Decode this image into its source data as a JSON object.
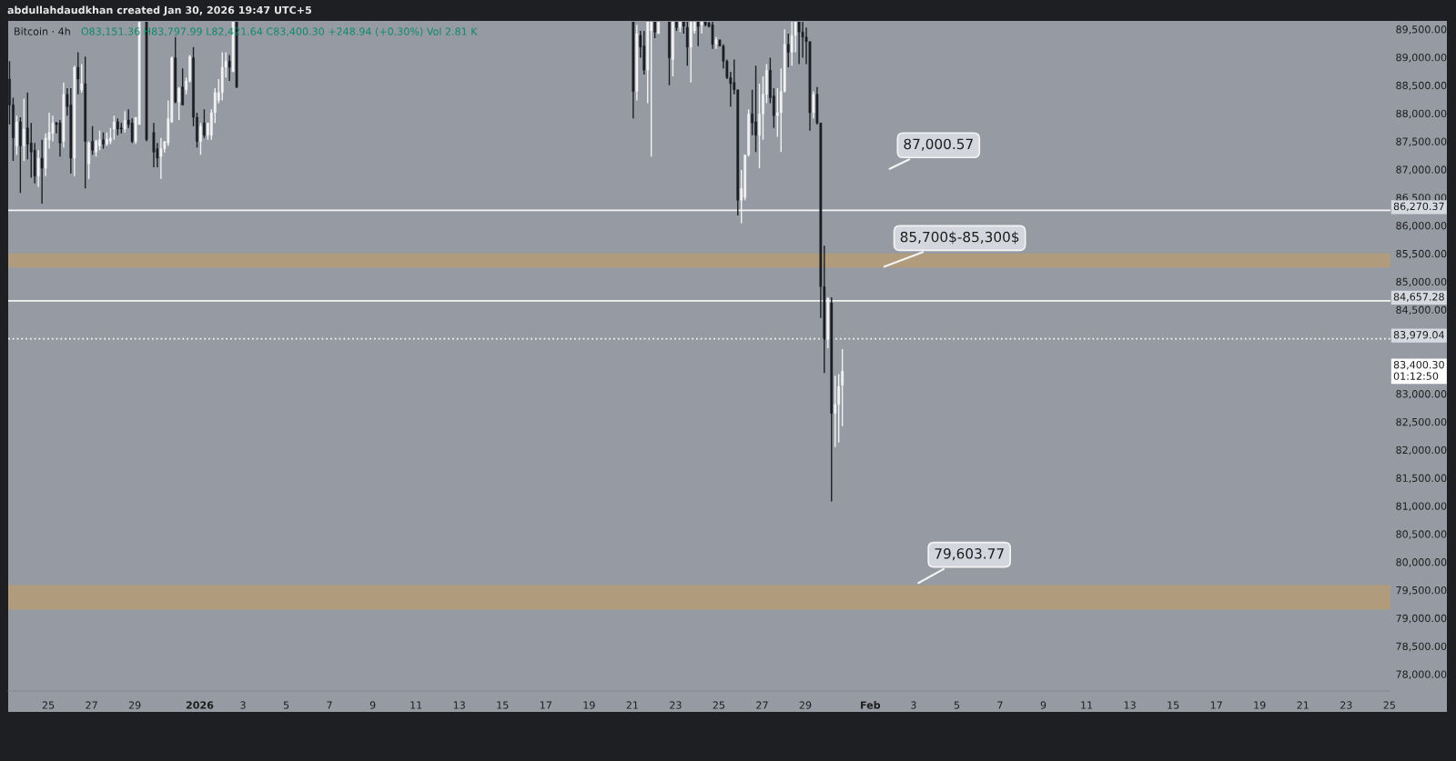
{
  "chart_data": {
    "type": "candlestick",
    "title": "Bitcoin · 4h",
    "subtitle": "O83,151.36 H83,797.99 L82,421.64 C83,400.30 +248.94 (+0.30%) Vol 2.81 K",
    "x": [
      "2025-12-23T05:00",
      "2025-12-23T09:00",
      "2025-12-23T13:00",
      "2025-12-23T17:00",
      "2025-12-23T21:00",
      "2025-12-24T01:00",
      "2025-12-24T05:00",
      "2025-12-24T09:00",
      "2025-12-24T13:00",
      "2025-12-24T17:00",
      "2025-12-24T21:00",
      "2025-12-25T01:00",
      "2025-12-25T05:00",
      "2025-12-25T09:00",
      "2025-12-25T13:00",
      "2025-12-25T17:00",
      "2025-12-25T21:00",
      "2025-12-26T01:00",
      "2025-12-26T05:00",
      "2025-12-26T09:00",
      "2025-12-26T13:00",
      "2025-12-26T17:00",
      "2025-12-26T21:00",
      "2025-12-27T01:00",
      "2025-12-27T05:00",
      "2025-12-27T09:00",
      "2025-12-27T13:00",
      "2025-12-27T17:00",
      "2025-12-27T21:00",
      "2025-12-28T01:00",
      "2025-12-28T05:00",
      "2025-12-28T09:00",
      "2025-12-28T13:00",
      "2025-12-28T17:00",
      "2025-12-28T21:00",
      "2025-12-29T01:00",
      "2025-12-29T05:00",
      "2025-12-29T13:00",
      "2025-12-29T21:00",
      "2025-12-30T01:00",
      "2025-12-30T05:00",
      "2025-12-30T09:00",
      "2025-12-30T13:00",
      "2025-12-30T17:00",
      "2025-12-30T21:00",
      "2025-12-31T01:00",
      "2025-12-31T05:00",
      "2025-12-31T09:00",
      "2025-12-31T13:00",
      "2025-12-31T17:00",
      "2025-12-31T21:00",
      "2026-01-01T01:00",
      "2026-01-01T05:00",
      "2026-01-01T09:00",
      "2026-01-01T13:00",
      "2026-01-01T17:00",
      "2026-01-01T21:00",
      "2026-01-02T01:00",
      "2026-01-02T05:00",
      "2026-01-02T09:00",
      "2026-01-02T13:00",
      "2026-01-02T17:00",
      "2026-01-21T01:00",
      "2026-01-21T05:00",
      "2026-01-21T09:00",
      "2026-01-21T13:00",
      "2026-01-21T17:00",
      "2026-01-21T21:00",
      "2026-01-22T01:00",
      "2026-01-22T05:00",
      "2026-01-22T17:00",
      "2026-01-22T21:00",
      "2026-01-23T01:00",
      "2026-01-23T05:00",
      "2026-01-23T09:00",
      "2026-01-23T13:00",
      "2026-01-23T17:00",
      "2026-01-23T21:00",
      "2026-01-24T01:00",
      "2026-01-24T05:00",
      "2026-01-24T09:00",
      "2026-01-24T13:00",
      "2026-01-24T17:00",
      "2026-01-24T21:00",
      "2026-01-25T01:00",
      "2026-01-25T05:00",
      "2026-01-25T09:00",
      "2026-01-25T13:00",
      "2026-01-25T17:00",
      "2026-01-25T21:00",
      "2026-01-26T01:00",
      "2026-01-26T05:00",
      "2026-01-26T09:00",
      "2026-01-26T13:00",
      "2026-01-26T17:00",
      "2026-01-26T21:00",
      "2026-01-27T01:00",
      "2026-01-27T05:00",
      "2026-01-27T09:00",
      "2026-01-27T13:00",
      "2026-01-27T17:00",
      "2026-01-27T21:00",
      "2026-01-28T01:00",
      "2026-01-28T05:00",
      "2026-01-28T09:00",
      "2026-01-28T13:00",
      "2026-01-28T17:00",
      "2026-01-28T21:00",
      "2026-01-29T01:00",
      "2026-01-29T05:00",
      "2026-01-29T09:00",
      "2026-01-29T13:00",
      "2026-01-29T17:00",
      "2026-01-29T21:00",
      "2026-01-30T01:00",
      "2026-01-30T05:00",
      "2026-01-30T09:00",
      "2026-01-30T13:00",
      "2026-01-30T17:00"
    ],
    "ohlc": [
      [
        88610,
        88930,
        87800,
        88150
      ],
      [
        88150,
        88280,
        87150,
        87560
      ],
      [
        87420,
        87960,
        87260,
        87850
      ],
      [
        87850,
        87930,
        86580,
        87420
      ],
      [
        87420,
        88260,
        87150,
        87720
      ],
      [
        87740,
        88370,
        87180,
        87450
      ],
      [
        87470,
        87830,
        86850,
        87310
      ],
      [
        87340,
        87470,
        86750,
        86880
      ],
      [
        86880,
        87340,
        86690,
        87200
      ],
      [
        87200,
        87530,
        86390,
        87020
      ],
      [
        87020,
        87640,
        86880,
        87560
      ],
      [
        87530,
        88010,
        87370,
        87660
      ],
      [
        87640,
        87960,
        87500,
        87830
      ],
      [
        87830,
        87850,
        87640,
        87800
      ],
      [
        87830,
        87880,
        87230,
        87470
      ],
      [
        87500,
        88550,
        87390,
        88340
      ],
      [
        88340,
        88450,
        87960,
        88120
      ],
      [
        88150,
        88450,
        86930,
        87200
      ],
      [
        87200,
        88850,
        86880,
        88820
      ],
      [
        88820,
        89090,
        88340,
        88610
      ],
      [
        88420,
        88880,
        88370,
        88530
      ],
      [
        88530,
        89010,
        86660,
        87500
      ],
      [
        87100,
        87500,
        86830,
        87470
      ],
      [
        87500,
        87770,
        87260,
        87340
      ],
      [
        87310,
        87530,
        87230,
        87500
      ],
      [
        87420,
        87690,
        87340,
        87530
      ],
      [
        87530,
        87660,
        87370,
        87450
      ],
      [
        87450,
        87660,
        87420,
        87540
      ],
      [
        87500,
        87740,
        87450,
        87560
      ],
      [
        87720,
        87960,
        87530,
        87850
      ],
      [
        87850,
        87910,
        87610,
        87720
      ],
      [
        87740,
        87830,
        87640,
        87720
      ],
      [
        87720,
        88040,
        87660,
        87880
      ],
      [
        87880,
        88070,
        87740,
        87800
      ],
      [
        87830,
        87910,
        87470,
        87500
      ],
      [
        87500,
        87930,
        87450,
        87930
      ],
      [
        87800,
        89630,
        87800,
        89630
      ],
      [
        89630,
        89630,
        87500,
        87530
      ],
      [
        87660,
        87830,
        87040,
        87310
      ],
      [
        87370,
        87470,
        87040,
        87200
      ],
      [
        87230,
        87560,
        86830,
        87370
      ],
      [
        87370,
        87500,
        87300,
        87500
      ],
      [
        87470,
        88230,
        87420,
        87910
      ],
      [
        87850,
        89010,
        87830,
        88990
      ],
      [
        88990,
        89360,
        88180,
        88200
      ],
      [
        88200,
        88470,
        87880,
        88450
      ],
      [
        88470,
        88800,
        88150,
        88150
      ],
      [
        88420,
        88640,
        88340,
        88580
      ],
      [
        88580,
        89040,
        88550,
        89010
      ],
      [
        88990,
        89180,
        87770,
        87930
      ],
      [
        87930,
        88010,
        87390,
        87500
      ],
      [
        87500,
        87830,
        87260,
        87770
      ],
      [
        87830,
        88070,
        87560,
        87610
      ],
      [
        87610,
        87830,
        87530,
        87830
      ],
      [
        87610,
        88070,
        87530,
        88010
      ],
      [
        88010,
        88450,
        87830,
        88370
      ],
      [
        88230,
        88610,
        88180,
        88370
      ],
      [
        88370,
        89090,
        88230,
        88820
      ],
      [
        88820,
        89090,
        88640,
        88930
      ],
      [
        88930,
        89040,
        88580,
        88820
      ],
      [
        88740,
        89630,
        88740,
        89630
      ],
      [
        89630,
        89630,
        88450,
        88470
      ],
      [
        89630,
        89630,
        87910,
        88390
      ],
      [
        88390,
        89580,
        88230,
        89420
      ],
      [
        89390,
        89470,
        88990,
        89180
      ],
      [
        89200,
        89470,
        88690,
        88770
      ],
      [
        88770,
        89630,
        88180,
        89630
      ],
      [
        89470,
        89630,
        87230,
        89630
      ],
      [
        89630,
        89630,
        89340,
        89450
      ],
      [
        89420,
        89630,
        89420,
        89630
      ],
      [
        89630,
        89630,
        88500,
        88990
      ],
      [
        88960,
        89630,
        88660,
        89630
      ],
      [
        89630,
        89630,
        89470,
        89530
      ],
      [
        89530,
        89630,
        89450,
        89630
      ],
      [
        89630,
        89630,
        89420,
        89550
      ],
      [
        89530,
        89630,
        88850,
        89180
      ],
      [
        89180,
        89630,
        88550,
        89630
      ],
      [
        89470,
        89630,
        89420,
        89630
      ],
      [
        89630,
        89630,
        89200,
        89550
      ],
      [
        89580,
        89630,
        89420,
        89630
      ],
      [
        89630,
        89630,
        89550,
        89580
      ],
      [
        89610,
        89630,
        89530,
        89550
      ],
      [
        89580,
        89630,
        89150,
        89230
      ],
      [
        89230,
        89360,
        89150,
        89310
      ],
      [
        89310,
        89310,
        89200,
        89200
      ],
      [
        89200,
        89230,
        88800,
        88930
      ],
      [
        88930,
        88960,
        88610,
        88640
      ],
      [
        88640,
        88740,
        88120,
        88530
      ],
      [
        88550,
        88960,
        88340,
        88420
      ],
      [
        88420,
        88420,
        86180,
        86450
      ],
      [
        86450,
        86990,
        86040,
        86660
      ],
      [
        86500,
        87260,
        86450,
        87260
      ],
      [
        87260,
        88070,
        87230,
        87990
      ],
      [
        87990,
        88420,
        87610,
        87830
      ],
      [
        87850,
        88850,
        87310,
        87610
      ],
      [
        87610,
        88530,
        87020,
        87990
      ],
      [
        87990,
        88660,
        87530,
        88340
      ],
      [
        88340,
        88880,
        88180,
        88770
      ],
      [
        88770,
        88990,
        88180,
        88280
      ],
      [
        88310,
        88450,
        87740,
        87960
      ],
      [
        87960,
        88450,
        87580,
        88010
      ],
      [
        88010,
        88800,
        87310,
        88390
      ],
      [
        88390,
        89500,
        88370,
        89230
      ],
      [
        89230,
        89420,
        88820,
        89090
      ],
      [
        89090,
        89630,
        88850,
        89390
      ],
      [
        89390,
        89630,
        89090,
        89630
      ],
      [
        89630,
        89630,
        88880,
        89450
      ],
      [
        89450,
        89630,
        88990,
        89360
      ],
      [
        89360,
        89530,
        88880,
        89280
      ],
      [
        89280,
        89280,
        87690,
        88010
      ],
      [
        88010,
        88390,
        87910,
        88340
      ],
      [
        88340,
        88470,
        87800,
        87830
      ],
      [
        87830,
        87830,
        84350,
        84910
      ],
      [
        84910,
        85640,
        83370,
        83970
      ],
      [
        83970,
        84720,
        83810,
        84700
      ],
      [
        84620,
        84720,
        81080,
        82650
      ],
      [
        82650,
        83320,
        82050,
        82810
      ],
      [
        82810,
        83350,
        82130,
        83130
      ],
      [
        83151.36,
        83797.99,
        82421.64,
        83400.3
      ]
    ],
    "xlim": [
      "2025-12-23T03:30",
      "2026-02-25T01:10"
    ],
    "xticks": [
      {
        "value": "2025-12-25",
        "label": "25"
      },
      {
        "value": "2025-12-27",
        "label": "27"
      },
      {
        "value": "2025-12-29",
        "label": "29"
      },
      {
        "value": "2026-01-01",
        "label": "2026"
      },
      {
        "value": "2026-01-03",
        "label": "3"
      },
      {
        "value": "2026-01-05",
        "label": "5"
      },
      {
        "value": "2026-01-07",
        "label": "7"
      },
      {
        "value": "2026-01-09",
        "label": "9"
      },
      {
        "value": "2026-01-11",
        "label": "11"
      },
      {
        "value": "2026-01-13",
        "label": "13"
      },
      {
        "value": "2026-01-15",
        "label": "15"
      },
      {
        "value": "2026-01-17",
        "label": "17"
      },
      {
        "value": "2026-01-19",
        "label": "19"
      },
      {
        "value": "2026-01-21",
        "label": "21"
      },
      {
        "value": "2026-01-23",
        "label": "23"
      },
      {
        "value": "2026-01-25",
        "label": "25"
      },
      {
        "value": "2026-01-27",
        "label": "27"
      },
      {
        "value": "2026-01-29",
        "label": "29"
      },
      {
        "value": "2026-02-01",
        "label": "Feb"
      },
      {
        "value": "2026-02-03",
        "label": "3"
      },
      {
        "value": "2026-02-05",
        "label": "5"
      },
      {
        "value": "2026-02-07",
        "label": "7"
      },
      {
        "value": "2026-02-09",
        "label": "9"
      },
      {
        "value": "2026-02-11",
        "label": "11"
      },
      {
        "value": "2026-02-13",
        "label": "13"
      },
      {
        "value": "2026-02-15",
        "label": "15"
      },
      {
        "value": "2026-02-17",
        "label": "17"
      },
      {
        "value": "2026-02-19",
        "label": "19"
      },
      {
        "value": "2026-02-21",
        "label": "21"
      },
      {
        "value": "2026-02-23",
        "label": "23"
      },
      {
        "value": "2026-02-25",
        "label": "25"
      }
    ],
    "ylim": [
      77700,
      89640
    ],
    "yticks": [
      {
        "value": 78000,
        "label": "78,000.00"
      },
      {
        "value": 78500,
        "label": "78,500.00"
      },
      {
        "value": 79000,
        "label": "79,000.00"
      },
      {
        "value": 79500,
        "label": "79,500.00"
      },
      {
        "value": 80000,
        "label": "80,000.00"
      },
      {
        "value": 80500,
        "label": "80,500.00"
      },
      {
        "value": 81000,
        "label": "81,000.00"
      },
      {
        "value": 81500,
        "label": "81,500.00"
      },
      {
        "value": 82000,
        "label": "82,000.00"
      },
      {
        "value": 82500,
        "label": "82,500.00"
      },
      {
        "value": 83000,
        "label": "83,000.00"
      },
      {
        "value": 84500,
        "label": "84,500.00"
      },
      {
        "value": 85000,
        "label": "85,000.00"
      },
      {
        "value": 85500,
        "label": "85,500.00"
      },
      {
        "value": 86000,
        "label": "86,000.00"
      },
      {
        "value": 86500,
        "label": "86,500.00"
      },
      {
        "value": 87000,
        "label": "87,000.00"
      },
      {
        "value": 87500,
        "label": "87,500.00"
      },
      {
        "value": 88000,
        "label": "88,000.00"
      },
      {
        "value": 88500,
        "label": "88,500.00"
      },
      {
        "value": 89000,
        "label": "89,000.00"
      },
      {
        "value": 89500,
        "label": "89,500.00"
      }
    ],
    "ref_lines": [
      {
        "axis": "y",
        "value": 86270.37,
        "label": "86,270.37",
        "color": "#f4f4f4",
        "line_style": "solid"
      },
      {
        "axis": "y",
        "value": 84657.28,
        "label": "84,657.28",
        "color": "#f4f4f4",
        "line_style": "solid"
      },
      {
        "axis": "y",
        "value": 83979.04,
        "label": "83,979.04",
        "color": "#f4f4f4",
        "line_style": "dotted"
      }
    ],
    "bands": [
      {
        "axis": "y",
        "from": 85250,
        "to": 85500,
        "color": "#b39b78"
      },
      {
        "axis": "y",
        "from": 79150,
        "to": 79590,
        "color": "#b39b78"
      }
    ],
    "annotations": [
      "abdullahdaudkhan created Jan 30, 2026 19:47 UTC+5",
      "87,000.57",
      "83,400.30\n01:12:50",
      {
        "text": "85,700$-85,300$",
        "x": "2026-02-01T13:00",
        "y": 85250
      },
      {
        "text": "79,603.77",
        "x": "2026-02-03T03:00",
        "y": 79603.77
      }
    ],
    "grid": false,
    "legend": false
  }
}
